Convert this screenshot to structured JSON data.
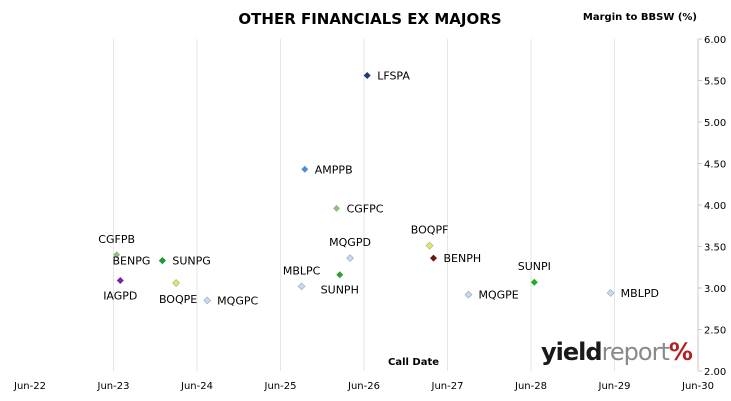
{
  "chart_data": {
    "type": "scatter",
    "title": "OTHER FINANCIALS EX MAJORS",
    "xlabel": "Call Date",
    "ylabel": "Margin to BBSW (%)",
    "xlim": [
      "2022-06-01",
      "2030-06-01"
    ],
    "ylim": [
      2.0,
      6.0
    ],
    "x_ticks": [
      "Jun-22",
      "Jun-23",
      "Jun-24",
      "Jun-25",
      "Jun-26",
      "Jun-27",
      "Jun-28",
      "Jun-29",
      "Jun-30"
    ],
    "y_ticks": [
      "2.00",
      "2.50",
      "3.00",
      "3.50",
      "4.00",
      "4.50",
      "5.00",
      "5.50",
      "6.00"
    ],
    "grid": "vertical",
    "legend": "none",
    "points": [
      {
        "label": "LFSPA",
        "x": "2026-06-15",
        "y": 5.56,
        "color": "#1f3a7a",
        "label_pos": "right"
      },
      {
        "label": "AMPPB",
        "x": "2025-09-15",
        "y": 4.43,
        "color": "#4f8fd6",
        "label_pos": "right"
      },
      {
        "label": "CGFPC",
        "x": "2026-02-01",
        "y": 3.96,
        "color": "#8fbf7f",
        "label_pos": "right"
      },
      {
        "label": "CGFPB",
        "x": "2023-06-15",
        "y": 3.4,
        "color": "#8fbf7f",
        "label_pos": "above"
      },
      {
        "label": "IAGPD",
        "x": "2023-07-01",
        "y": 3.09,
        "color": "#7a1fb0",
        "label_pos": "below"
      },
      {
        "label": "BENPG",
        "x": "2024-01-01",
        "y": 3.33,
        "color": "#1a9a3a",
        "label_pos": "left"
      },
      {
        "label": "SUNPG",
        "x": "2024-01-01",
        "y": 3.33,
        "color": "#1a9a3a",
        "label_pos": "right"
      },
      {
        "label": "BOQPE",
        "x": "2024-03-01",
        "y": 3.06,
        "color": "#e8e84a",
        "label_pos": "below-left"
      },
      {
        "label": "MQGPC",
        "x": "2024-07-15",
        "y": 2.85,
        "color": "#c8d8f0",
        "label_pos": "right"
      },
      {
        "label": "MBLPC",
        "x": "2025-09-01",
        "y": 3.02,
        "color": "#c8d8f0",
        "label_pos": "above"
      },
      {
        "label": "SUNPH",
        "x": "2026-02-15",
        "y": 3.16,
        "color": "#3a9a3a",
        "label_pos": "below"
      },
      {
        "label": "MQGPD",
        "x": "2026-04-01",
        "y": 3.36,
        "color": "#c8d8f0",
        "label_pos": "above"
      },
      {
        "label": "BOQPF",
        "x": "2027-03-15",
        "y": 3.51,
        "color": "#e8e84a",
        "label_pos": "above"
      },
      {
        "label": "BENPH",
        "x": "2027-04-01",
        "y": 3.36,
        "color": "#6a1a0a",
        "label_pos": "right"
      },
      {
        "label": "MQGPE",
        "x": "2027-09-01",
        "y": 2.92,
        "color": "#c8d8f0",
        "label_pos": "right"
      },
      {
        "label": "SUNPI",
        "x": "2028-06-15",
        "y": 3.07,
        "color": "#1ab01a",
        "label_pos": "above"
      },
      {
        "label": "MBLPD",
        "x": "2029-05-15",
        "y": 2.94,
        "color": "#c8d8f0",
        "label_pos": "right"
      }
    ]
  },
  "logo": {
    "yield": "yield",
    "report": "report",
    "percent": "%"
  }
}
